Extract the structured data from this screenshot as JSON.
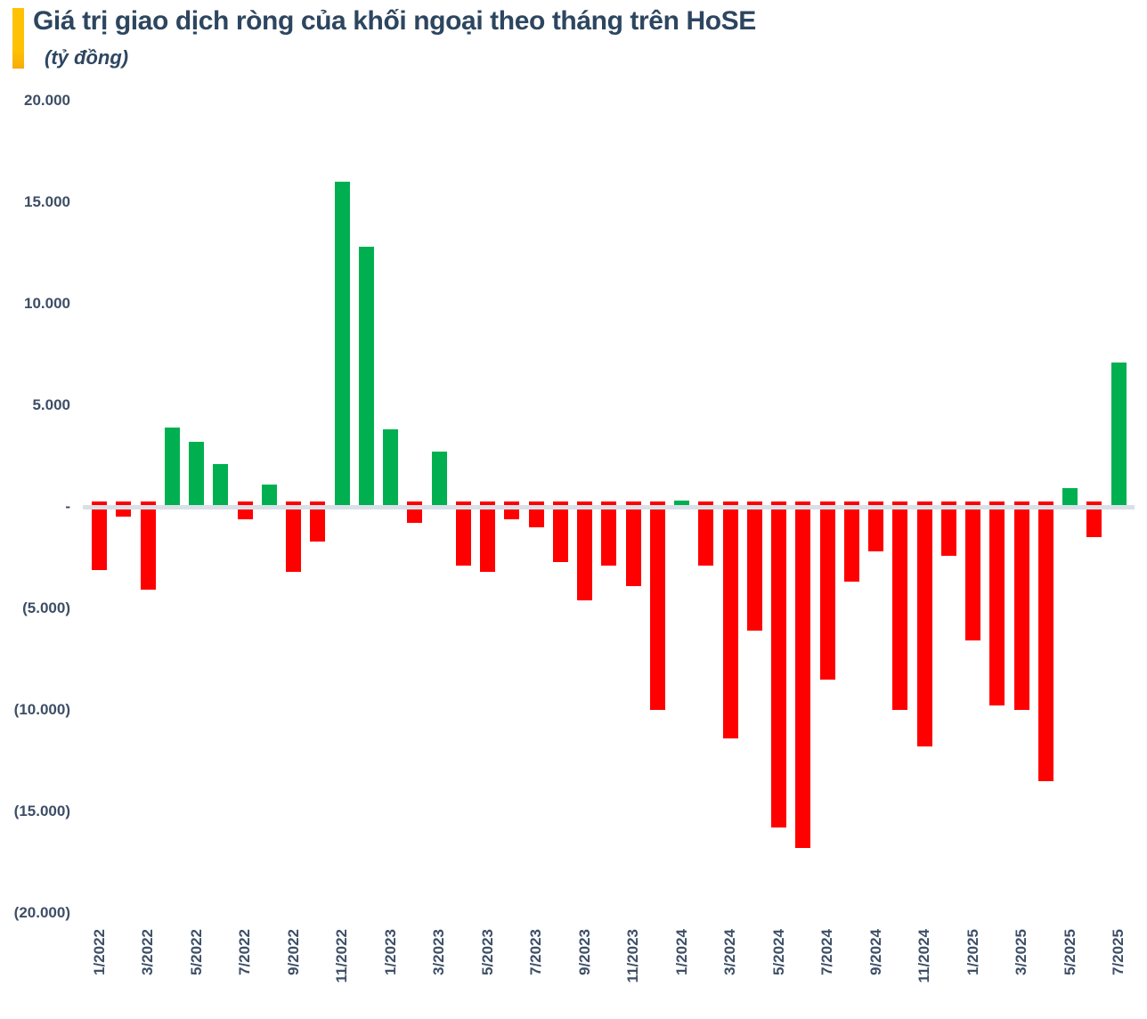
{
  "header": {
    "title": "Giá trị giao dịch ròng của khối ngoại theo tháng trên HoSE",
    "subtitle": "(tỷ đồng)",
    "accent_color": "#FFC103",
    "title_color": "#2D4660"
  },
  "chart_data": {
    "type": "bar",
    "title": "Giá trị giao dịch ròng của khối ngoại theo tháng trên HoSE",
    "unit": "tỷ đồng",
    "categories": [
      "1/2022",
      "2/2022",
      "3/2022",
      "4/2022",
      "5/2022",
      "6/2022",
      "7/2022",
      "8/2022",
      "9/2022",
      "10/2022",
      "11/2022",
      "12/2022",
      "1/2023",
      "2/2023",
      "3/2023",
      "4/2023",
      "5/2023",
      "6/2023",
      "7/2023",
      "8/2023",
      "9/2023",
      "10/2023",
      "11/2023",
      "12/2023",
      "1/2024",
      "2/2024",
      "3/2024",
      "4/2024",
      "5/2024",
      "6/2024",
      "7/2024",
      "8/2024",
      "9/2024",
      "10/2024",
      "11/2024",
      "12/2024",
      "1/2025",
      "2/2025",
      "3/2025",
      "4/2025",
      "5/2025",
      "6/2025",
      "7/2025"
    ],
    "values": [
      -3100,
      -500,
      -4100,
      3900,
      3200,
      2100,
      -600,
      1100,
      -3200,
      -1700,
      16000,
      12800,
      3800,
      -800,
      2700,
      -2900,
      -3200,
      -600,
      -1000,
      -2700,
      -4600,
      -2900,
      -3900,
      -10000,
      300,
      -2900,
      -11400,
      -6100,
      -15800,
      -16800,
      -8500,
      -3700,
      -2200,
      -10000,
      -11800,
      -2400,
      -6600,
      -9800,
      -10000,
      -13500,
      900,
      -1500,
      7100
    ],
    "positive_color": "#00B050",
    "negative_color": "#FF0000",
    "ylim": [
      -20000,
      20000
    ],
    "grid": "none",
    "legend": "none",
    "axis": {
      "y_ticks": [
        {
          "v": 20000,
          "label": "20.000"
        },
        {
          "v": 15000,
          "label": "15.000"
        },
        {
          "v": 10000,
          "label": "10.000"
        },
        {
          "v": 5000,
          "label": "5.000"
        },
        {
          "v": 0,
          "label": "-"
        },
        {
          "v": -5000,
          "label": "(5.000)"
        },
        {
          "v": -10000,
          "label": "(10.000)"
        },
        {
          "v": -15000,
          "label": "(15.000)"
        },
        {
          "v": -20000,
          "label": "(20.000)"
        }
      ],
      "x_tick_labels": [
        "1/2022",
        "3/2022",
        "5/2022",
        "7/2022",
        "9/2022",
        "11/2022",
        "1/2023",
        "3/2023",
        "5/2023",
        "7/2023",
        "9/2023",
        "11/2023",
        "1/2024",
        "3/2024",
        "5/2024",
        "7/2024",
        "9/2024",
        "11/2024",
        "1/2025",
        "3/2025",
        "5/2025",
        "7/2025"
      ],
      "x_tick_every": 2,
      "zero_line_color": "#D9E0E8",
      "label_color": "#3D4E66"
    }
  }
}
